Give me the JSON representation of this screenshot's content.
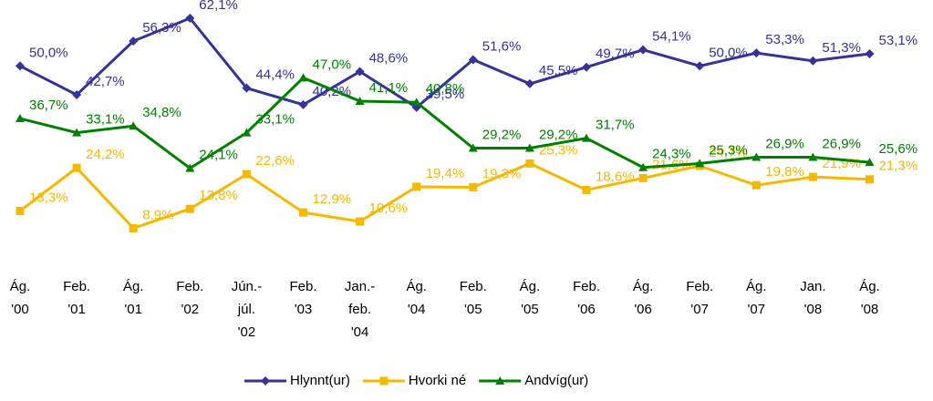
{
  "chart_data": {
    "type": "line",
    "categories": [
      [
        "Ág.",
        "'00"
      ],
      [
        "Feb.",
        "'01"
      ],
      [
        "Ág.",
        "'01"
      ],
      [
        "Feb.",
        "'02"
      ],
      [
        "Jún.-",
        "júl.",
        "'02"
      ],
      [
        "Feb.",
        "'03"
      ],
      [
        "Jan.-",
        "feb.",
        "'04"
      ],
      [
        "Ág.",
        "'04"
      ],
      [
        "Feb.",
        "'05"
      ],
      [
        "Ág.",
        "'05"
      ],
      [
        "Feb.",
        "'06"
      ],
      [
        "Ág.",
        "'06"
      ],
      [
        "Feb.",
        "'07"
      ],
      [
        "Ág.",
        "'07"
      ],
      [
        "Jan.",
        "'08"
      ],
      [
        "Ág.",
        "'08"
      ]
    ],
    "series": [
      {
        "name": "Hlynnt(ur)",
        "color": "#333399",
        "marker": "diamond",
        "values": [
          50.0,
          42.7,
          56.3,
          62.1,
          44.4,
          40.2,
          48.6,
          39.5,
          51.6,
          45.5,
          49.7,
          54.1,
          50.0,
          53.3,
          51.3,
          53.1
        ],
        "value_labels": [
          "50,0%",
          "42,7%",
          "56,3%",
          "62,1%",
          "44,4%",
          "40,2%",
          "48,6%",
          "39,5%",
          "51,6%",
          "45,5%",
          "49,7%",
          "54,1%",
          "50,0%",
          "53,3%",
          "51,3%",
          "53,1%"
        ]
      },
      {
        "name": "Hvorki né",
        "color": "#f5b800",
        "marker": "square",
        "values": [
          13.3,
          24.2,
          8.9,
          13.8,
          22.6,
          12.9,
          10.6,
          19.4,
          19.3,
          25.3,
          18.6,
          21.6,
          24.7,
          19.8,
          21.9,
          21.3
        ],
        "value_labels": [
          "13,3%",
          "24,2%",
          "8,9%",
          "13,8%",
          "22,6%",
          "12,9%",
          "10,6%",
          "19,4%",
          "19,3%",
          "25,3%",
          "18,6%",
          "21,6%",
          "24,7%",
          "19,8%",
          "21,9%",
          "21,3%"
        ]
      },
      {
        "name": "Andvíg(ur)",
        "color": "#008000",
        "marker": "triangle",
        "values": [
          36.7,
          33.1,
          34.8,
          24.1,
          33.1,
          47.0,
          41.1,
          40.8,
          29.2,
          29.2,
          31.7,
          24.3,
          25.3,
          26.9,
          26.9,
          25.6
        ],
        "value_labels": [
          "36,7%",
          "33,1%",
          "34,8%",
          "24,1%",
          "33,1%",
          "47,0%",
          "41,1%",
          "40,8%",
          "29,2%",
          "29,2%",
          "31,7%",
          "24,3%",
          "25,3%",
          "26,9%",
          "26,9%",
          "25,6%"
        ]
      }
    ],
    "legend": "bottom"
  }
}
